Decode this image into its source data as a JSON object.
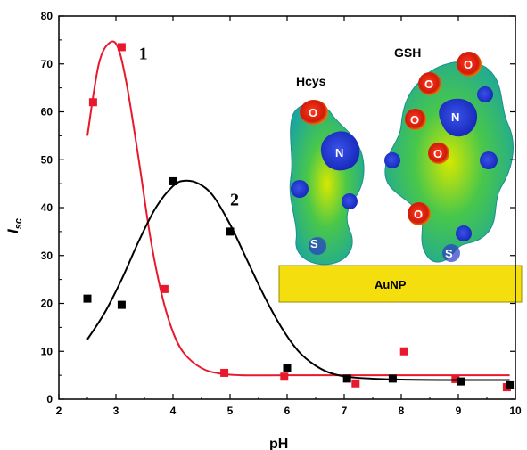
{
  "chart_data": {
    "type": "scatter",
    "xlabel": "pH",
    "ylabel_main": "I",
    "ylabel_sub": "sc",
    "xlim": [
      2,
      10
    ],
    "ylim": [
      0,
      80
    ],
    "x_ticks": [
      2,
      3,
      4,
      5,
      6,
      7,
      8,
      9,
      10
    ],
    "y_ticks": [
      0,
      10,
      20,
      30,
      40,
      50,
      60,
      70,
      80
    ],
    "series": [
      {
        "name": "1",
        "color": "#e8192c",
        "points": [
          [
            2.6,
            62
          ],
          [
            3.1,
            73.5
          ],
          [
            3.85,
            23
          ],
          [
            4.9,
            5.5
          ],
          [
            5.95,
            4.7
          ],
          [
            7.2,
            3.3
          ],
          [
            8.05,
            10
          ],
          [
            8.95,
            4.2
          ],
          [
            9.85,
            2.5
          ]
        ],
        "curve": [
          [
            2.5,
            55
          ],
          [
            2.7,
            70
          ],
          [
            2.9,
            74.5
          ],
          [
            3.05,
            73
          ],
          [
            3.2,
            65
          ],
          [
            3.4,
            50
          ],
          [
            3.6,
            34
          ],
          [
            3.8,
            22
          ],
          [
            4.0,
            14
          ],
          [
            4.2,
            9.5
          ],
          [
            4.5,
            6.5
          ],
          [
            4.8,
            5.4
          ],
          [
            5.2,
            5.0
          ],
          [
            6.0,
            5.0
          ],
          [
            7.0,
            5.0
          ],
          [
            8.0,
            5.0
          ],
          [
            9.0,
            5.0
          ],
          [
            9.9,
            5.0
          ]
        ]
      },
      {
        "name": "2",
        "color": "#000000",
        "points": [
          [
            2.5,
            21
          ],
          [
            3.1,
            19.7
          ],
          [
            4.0,
            45.5
          ],
          [
            5.0,
            35
          ],
          [
            6.0,
            6.5
          ],
          [
            7.05,
            4.3
          ],
          [
            7.85,
            4.3
          ],
          [
            9.05,
            3.7
          ],
          [
            9.9,
            2.9
          ]
        ],
        "curve": [
          [
            2.5,
            12.5
          ],
          [
            2.8,
            18
          ],
          [
            3.1,
            25
          ],
          [
            3.4,
            33
          ],
          [
            3.7,
            40
          ],
          [
            4.0,
            44.5
          ],
          [
            4.2,
            45.6
          ],
          [
            4.45,
            45
          ],
          [
            4.7,
            42.5
          ],
          [
            5.0,
            36.5
          ],
          [
            5.3,
            29
          ],
          [
            5.6,
            21.5
          ],
          [
            5.9,
            15
          ],
          [
            6.2,
            10
          ],
          [
            6.5,
            7
          ],
          [
            6.8,
            5.3
          ],
          [
            7.2,
            4.5
          ],
          [
            8.0,
            4.1
          ],
          [
            9.0,
            4.0
          ],
          [
            9.9,
            4.0
          ]
        ]
      }
    ],
    "curve_labels": [
      {
        "text": "1",
        "x": 3.4,
        "y": 71
      },
      {
        "text": "2",
        "x": 5.0,
        "y": 40.5
      }
    ]
  },
  "inset": {
    "molecule_left": "Hcys",
    "molecule_right": "GSH",
    "atom_o": "O",
    "atom_n": "N",
    "atom_s": "S",
    "nanoparticle": "AuNP"
  }
}
